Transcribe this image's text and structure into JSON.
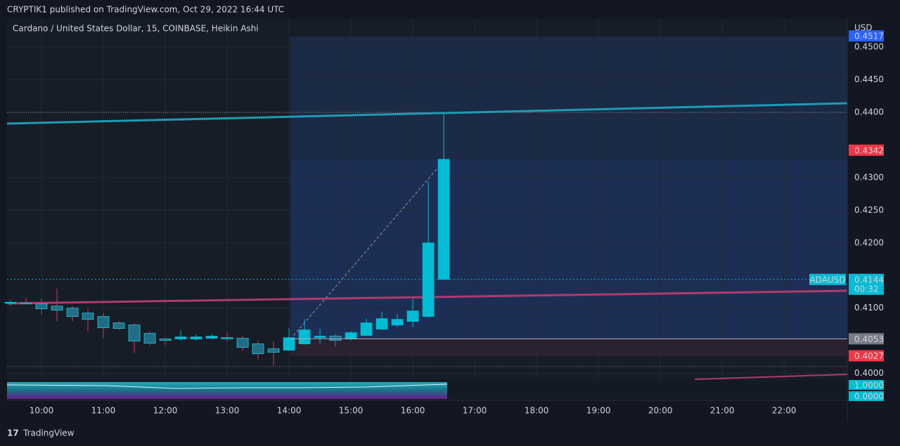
{
  "header": {
    "published": "CRYPTIK1 published on TradingView.com, Oct 29, 2022 16:44 UTC"
  },
  "chart_data": {
    "type": "candlestick",
    "title": "Cardano / United States Dollar, 15, COINBASE, Heikin Ashi",
    "currency": "USD",
    "x": [
      9.5,
      9.75,
      10,
      10.25,
      10.5,
      10.75,
      11,
      11.25,
      11.5,
      11.75,
      12,
      12.25,
      12.5,
      12.75,
      13,
      13.25,
      13.5,
      13.75,
      14,
      14.25,
      14.5,
      14.75,
      15,
      15.25,
      15.5,
      15.75,
      16,
      16.25,
      16.5
    ],
    "open": [
      0.4108,
      0.4108,
      0.41065,
      0.4103,
      0.41,
      0.40925,
      0.40871,
      0.40774,
      0.40742,
      0.40613,
      0.40527,
      0.40527,
      0.40527,
      0.40538,
      0.40549,
      0.40538,
      0.40452,
      0.40376,
      0.40355,
      0.40452,
      0.40548,
      0.4057,
      0.40527,
      0.40581,
      0.40677,
      0.4074,
      0.40796,
      0.40871,
      0.41441
    ],
    "high": [
      0.41118,
      0.41161,
      0.4115,
      0.413,
      0.41032,
      0.40989,
      0.40925,
      0.40806,
      0.40774,
      0.40645,
      0.40538,
      0.40656,
      0.40602,
      0.40602,
      0.40624,
      0.40581,
      0.40495,
      0.40495,
      0.40699,
      0.40828,
      0.40688,
      0.40602,
      0.40645,
      0.40839,
      0.40946,
      0.4091,
      0.4114,
      0.42946,
      0.43989
    ],
    "low": [
      0.41043,
      0.41054,
      0.40903,
      0.408,
      0.408,
      0.40649,
      0.40538,
      0.40667,
      0.40312,
      0.4043,
      0.4043,
      0.40505,
      0.40505,
      0.40527,
      0.40495,
      0.40344,
      0.40215,
      0.40118,
      0.40344,
      0.40441,
      0.40452,
      0.40409,
      0.40505,
      0.4057,
      0.40667,
      0.4071,
      0.4071,
      0.4086,
      0.41441
    ],
    "close": [
      0.4109,
      0.41065,
      0.4099,
      0.40968,
      0.40871,
      0.40828,
      0.40699,
      0.40688,
      0.40495,
      0.40462,
      0.40505,
      0.40559,
      0.40559,
      0.4057,
      0.40527,
      0.40398,
      0.40301,
      0.40323,
      0.40548,
      0.40667,
      0.4057,
      0.40505,
      0.40624,
      0.40774,
      0.40839,
      0.40828,
      0.40957,
      0.42,
      0.4328
    ],
    "up_color": "#00bcd4",
    "down_color": "#1f6e86",
    "down_wick_color": "#e0306e",
    "xlim": [
      9.443,
      23.02
    ],
    "xticks": [
      {
        "value": 10,
        "label": "10:00"
      },
      {
        "value": 11,
        "label": "11:00"
      },
      {
        "value": 12,
        "label": "12:00"
      },
      {
        "value": 13,
        "label": "13:00"
      },
      {
        "value": 14,
        "label": "14:00"
      },
      {
        "value": 15,
        "label": "15:00"
      },
      {
        "value": 16,
        "label": "16:00"
      },
      {
        "value": 17,
        "label": "17:00"
      },
      {
        "value": 18,
        "label": "18:00"
      },
      {
        "value": 19,
        "label": "19:00"
      },
      {
        "value": 20,
        "label": "20:00"
      },
      {
        "value": 21,
        "label": "21:00"
      },
      {
        "value": 22,
        "label": "22:00"
      }
    ],
    "ylim": [
      0.3991,
      0.4543
    ],
    "yticks": [
      {
        "value": 0.4,
        "label": "0.4000"
      },
      {
        "value": 0.41,
        "label": "0.4100"
      },
      {
        "value": 0.42,
        "label": "0.4200"
      },
      {
        "value": 0.425,
        "label": "0.4250"
      },
      {
        "value": 0.43,
        "label": "0.4300"
      },
      {
        "value": 0.44,
        "label": "0.4400"
      },
      {
        "value": 0.445,
        "label": "0.4450"
      },
      {
        "value": 0.45,
        "label": "0.4500"
      }
    ],
    "grid": true,
    "price_tags": [
      {
        "value": 0.4517,
        "color": "#2962ff"
      },
      {
        "value": 0.4342,
        "color": "#f23645"
      },
      {
        "value": 0.4144,
        "color": "#00bcd4",
        "symbol": "ADAUSD",
        "countdown": "00:32"
      },
      {
        "value": 0.4053,
        "color": "#787b86"
      },
      {
        "value": 0.4027,
        "color": "#f23645"
      }
    ],
    "indicator_tags": [
      {
        "value": 1,
        "label": "1.0000"
      },
      {
        "value": 0,
        "label": "0.0000"
      }
    ]
  },
  "footer": {
    "brand": "TradingView"
  }
}
